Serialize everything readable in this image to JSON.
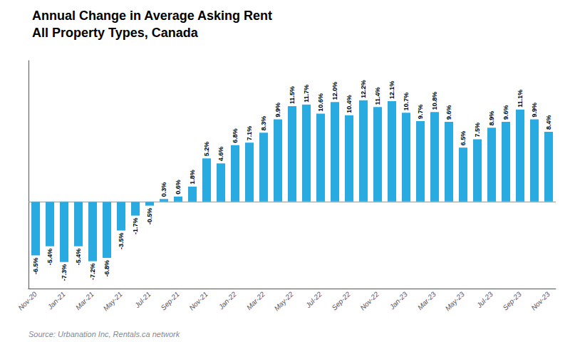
{
  "chart_data": {
    "type": "bar",
    "title": "Annual Change in Average Asking Rent",
    "subtitle": "All Property Types, Canada",
    "annotations": [
      "Source: Urbanation Inc, Rentals.ca network"
    ],
    "categories": [
      "Nov-20",
      null,
      "Jan-21",
      null,
      "Mar-21",
      null,
      "May-21",
      null,
      "Jul-21",
      null,
      "Sep-21",
      null,
      "Nov-21",
      null,
      "Jan-22",
      null,
      "Mar-22",
      null,
      "May-22",
      null,
      "Jul-22",
      null,
      "Sep-22",
      null,
      "Nov-22",
      null,
      "Jan-23",
      null,
      "Mar-23",
      null,
      "May-23",
      null,
      "Jul-23",
      null,
      "Sep-23",
      null,
      "Nov-23"
    ],
    "values": [
      -6.5,
      -5.4,
      -7.3,
      -5.4,
      -7.2,
      -6.8,
      -3.5,
      -1.7,
      -0.5,
      0.3,
      0.6,
      1.8,
      5.2,
      4.6,
      6.8,
      7.1,
      8.3,
      9.9,
      11.5,
      11.7,
      10.6,
      12.0,
      10.4,
      12.2,
      11.4,
      12.1,
      10.7,
      9.7,
      10.8,
      9.6,
      6.5,
      7.5,
      8.9,
      9.6,
      11.1,
      9.9,
      8.4
    ],
    "value_labels": [
      "-6.5%",
      "-5.4%",
      "-7.3%",
      "-5.4%",
      "-7.2%",
      "-6.8%",
      "-3.5%",
      "-1.7%",
      "-0.5%",
      "0.3%",
      "0.6%",
      "1.8%",
      "5.2%",
      "4.6%",
      "6.8%",
      "7.1%",
      "8.3%",
      "9.9%",
      "11.5%",
      "11.7%",
      "10.6%",
      "12.0%",
      "10.4%",
      "12.2%",
      "11.4%",
      "12.1%",
      "10.7%",
      "9.7%",
      "10.8%",
      "9.6%",
      "6.5%",
      "7.5%",
      "8.9%",
      "9.6%",
      "11.1%",
      "9.9%",
      "8.4%"
    ],
    "color": "#29ABE2",
    "ylim": [
      -10.5,
      17.0
    ],
    "data_labels": true,
    "tick_labels": "x",
    "grid": false
  }
}
